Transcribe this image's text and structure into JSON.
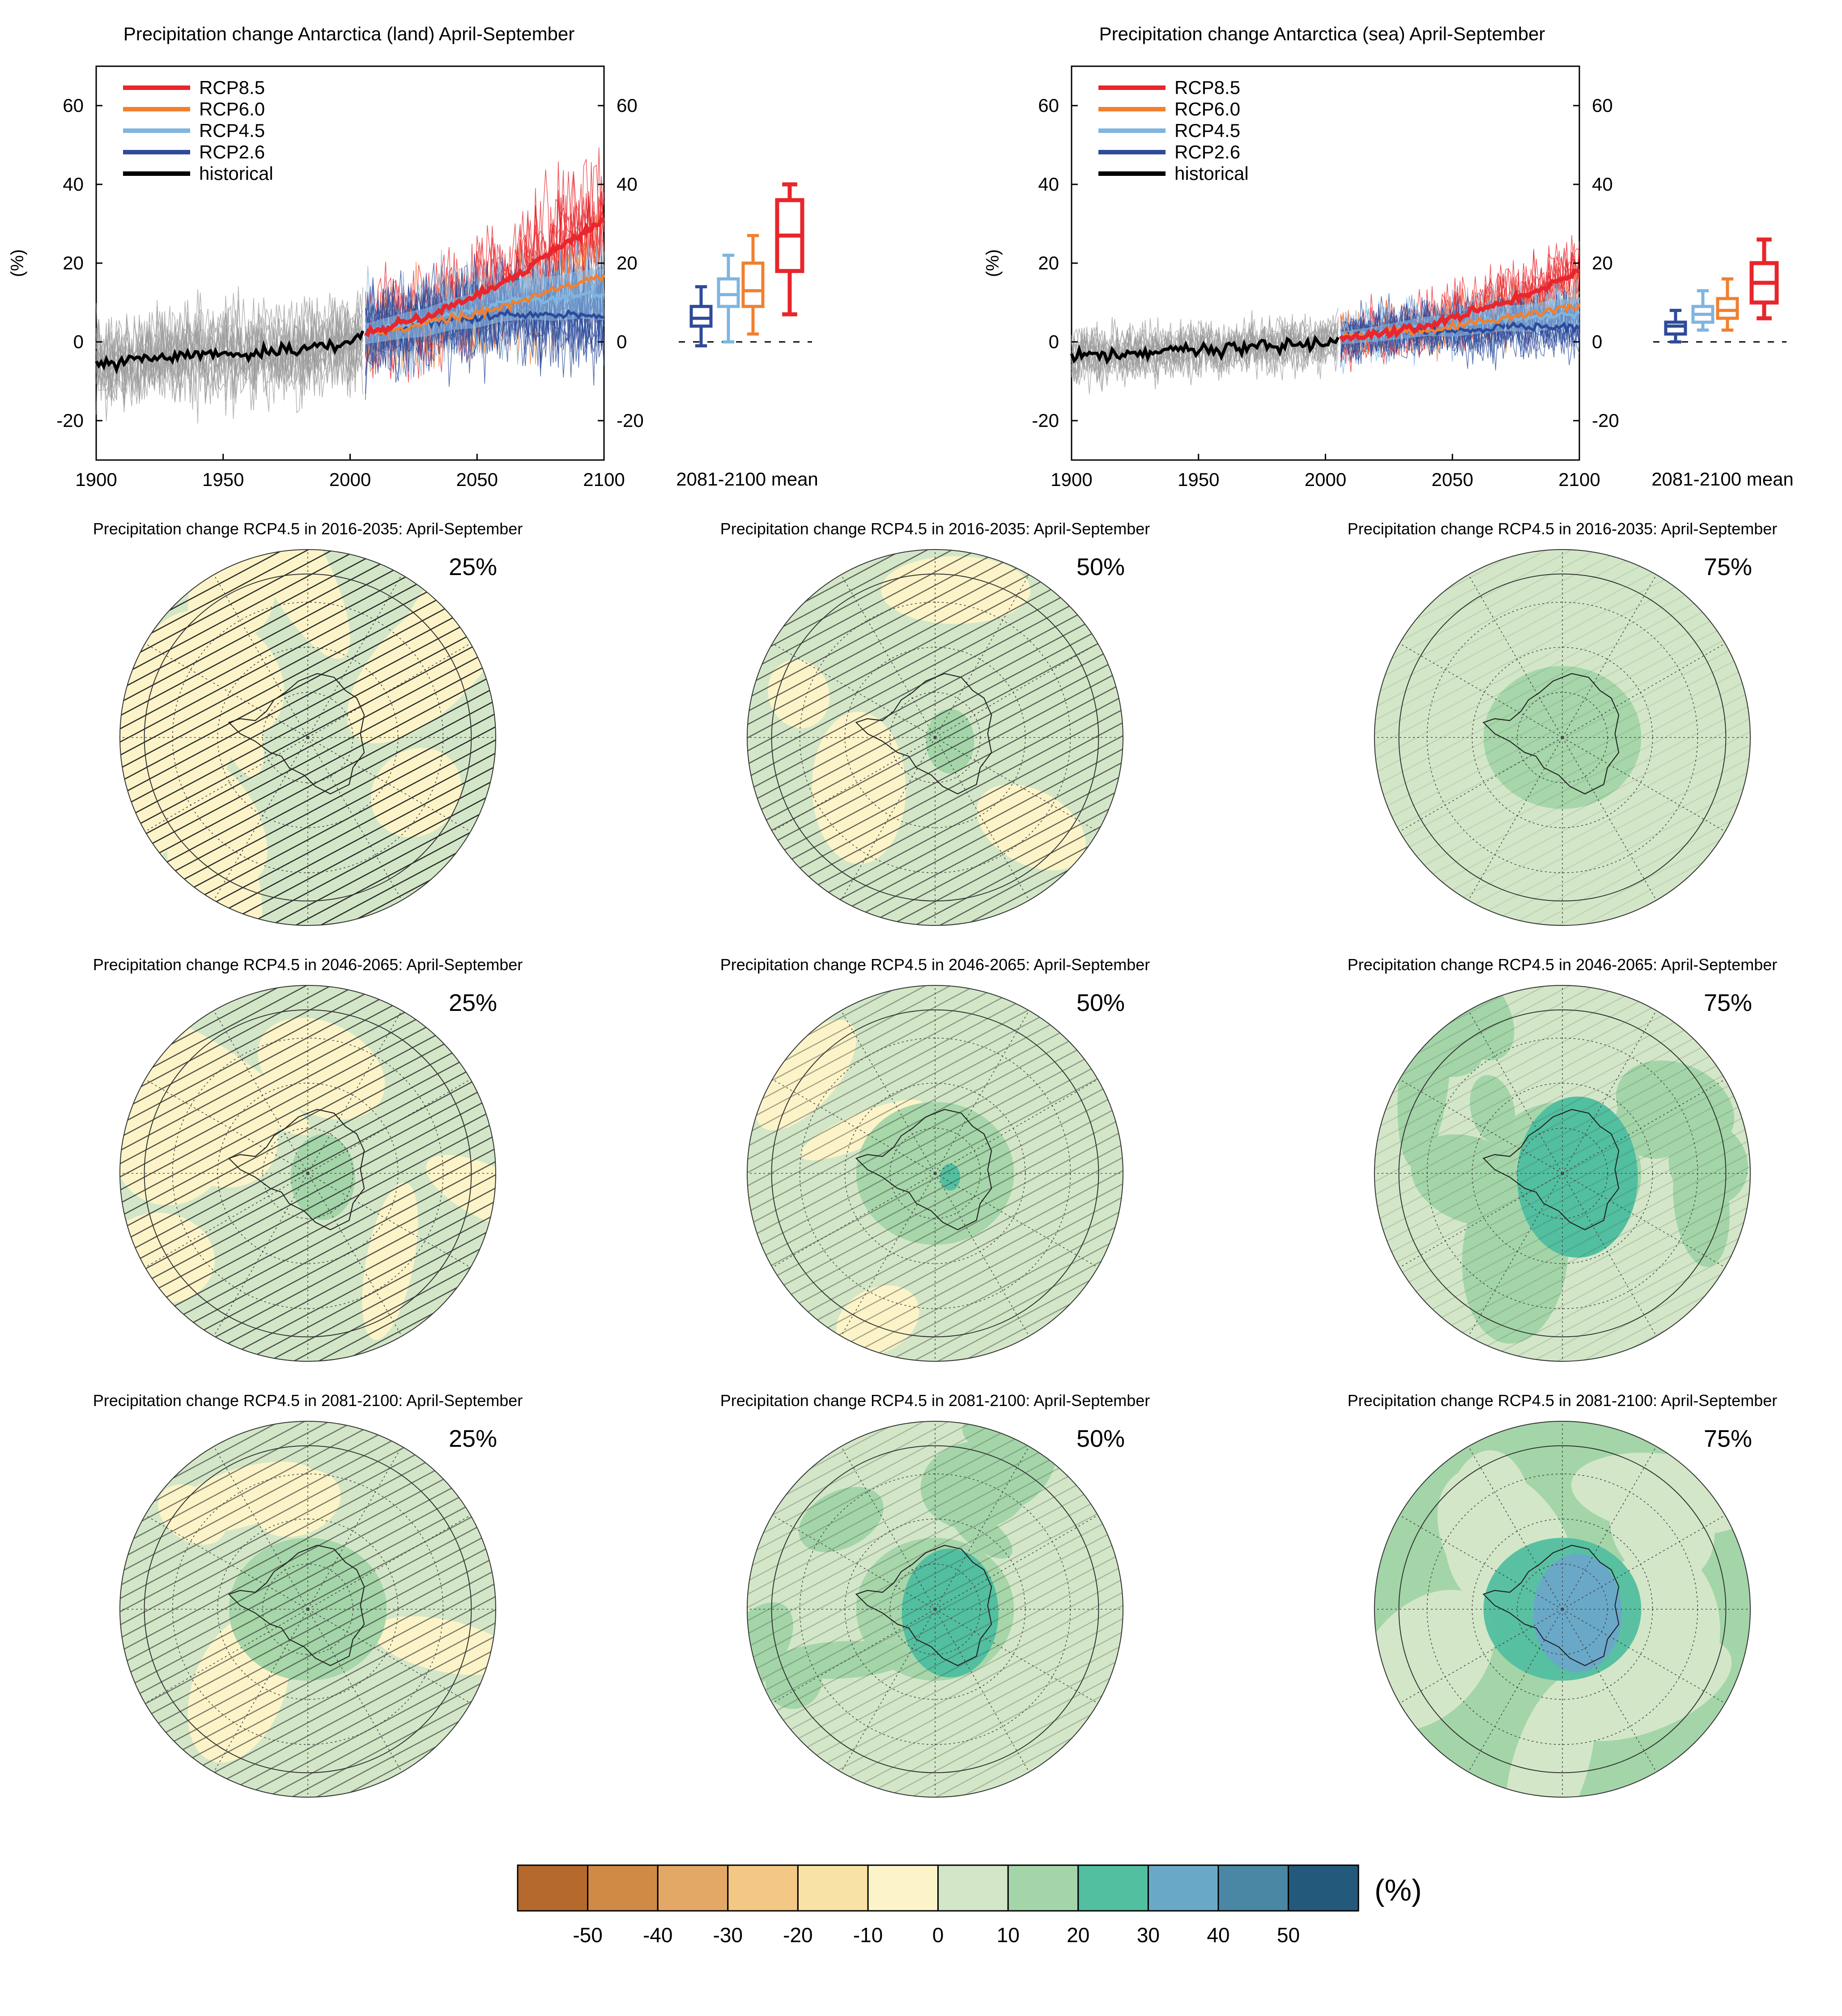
{
  "timeseries": [
    {
      "title": "Precipitation change Antarctica (land) April-September",
      "ylabel": "(%)",
      "box_xlabel": "2081-2100 mean"
    },
    {
      "title": "Precipitation change Antarctica (sea) April-September",
      "ylabel": "(%)",
      "box_xlabel": "2081-2100 mean"
    }
  ],
  "maps": [
    {
      "title": "Precipitation change RCP4.5 in 2016-2035: April-September",
      "percentile": "25%"
    },
    {
      "title": "Precipitation change RCP4.5 in 2016-2035: April-September",
      "percentile": "50%"
    },
    {
      "title": "Precipitation change RCP4.5 in 2016-2035: April-September",
      "percentile": "75%"
    },
    {
      "title": "Precipitation change RCP4.5 in 2046-2065: April-September",
      "percentile": "25%"
    },
    {
      "title": "Precipitation change RCP4.5 in 2046-2065: April-September",
      "percentile": "50%"
    },
    {
      "title": "Precipitation change RCP4.5 in 2046-2065: April-September",
      "percentile": "75%"
    },
    {
      "title": "Precipitation change RCP4.5 in 2081-2100: April-September",
      "percentile": "25%"
    },
    {
      "title": "Precipitation change RCP4.5 in 2081-2100: April-September",
      "percentile": "50%"
    },
    {
      "title": "Precipitation change RCP4.5 in 2081-2100: April-September",
      "percentile": "75%"
    }
  ],
  "colorbar": {
    "unit": "(%)",
    "colors": [
      "#b5692c",
      "#cf8a45",
      "#e3a866",
      "#f2c884",
      "#f8e2a5",
      "#fcf4c8",
      "#d3e7c8",
      "#a3d5a8",
      "#52bfa0",
      "#6aa8c8",
      "#4a87a5",
      "#235a7c"
    ],
    "tick_labels": [
      "-50",
      "-40",
      "-30",
      "-20",
      "-10",
      "0",
      "10",
      "20",
      "30",
      "40",
      "50"
    ]
  },
  "chart_data": [
    {
      "type": "line",
      "title": "Precipitation change Antarctica (land) April-September",
      "xlabel": "",
      "ylabel": "(%)",
      "xlim": [
        1900,
        2100
      ],
      "ylim": [
        -30,
        70
      ],
      "x_ticks": [
        "1900",
        "1950",
        "2000",
        "2050",
        "2100"
      ],
      "y_ticks": [
        "-20",
        "0",
        "20",
        "40",
        "60"
      ],
      "legend_position": "top-left",
      "series": [
        {
          "name": "RCP8.5",
          "color": "#e8262b",
          "x": [
            2006,
            2020,
            2030,
            2040,
            2050,
            2060,
            2070,
            2080,
            2090,
            2100
          ],
          "values": [
            2,
            5,
            6,
            9,
            12,
            15,
            19,
            23,
            27,
            31
          ]
        },
        {
          "name": "RCP6.0",
          "color": "#f08030",
          "x": [
            2006,
            2020,
            2030,
            2040,
            2050,
            2060,
            2070,
            2080,
            2090,
            2100
          ],
          "values": [
            2,
            3,
            5,
            6,
            7,
            9,
            11,
            13,
            15,
            17
          ]
        },
        {
          "name": "RCP4.5",
          "color": "#7fb5e0",
          "x": [
            2006,
            2020,
            2030,
            2040,
            2050,
            2060,
            2070,
            2080,
            2090,
            2100
          ],
          "values": [
            2,
            4,
            5,
            7,
            8,
            10,
            11,
            11,
            12,
            12
          ]
        },
        {
          "name": "RCP2.6",
          "color": "#2e4a9a",
          "x": [
            2006,
            2020,
            2030,
            2040,
            2050,
            2060,
            2070,
            2080,
            2090,
            2100
          ],
          "values": [
            2,
            4,
            5,
            6,
            6,
            7,
            7,
            7,
            7,
            7
          ]
        },
        {
          "name": "historical",
          "color": "#000000",
          "x": [
            1900,
            1910,
            1920,
            1930,
            1940,
            1950,
            1960,
            1970,
            1980,
            1990,
            2000,
            2005
          ],
          "values": [
            -5,
            -5,
            -4,
            -4,
            -3,
            -3,
            -3,
            -2,
            -2,
            -1,
            0,
            2
          ]
        }
      ],
      "boxes": [
        {
          "name": "RCP2.6",
          "color": "#2e4a9a",
          "min": -1,
          "q1": 4,
          "median": 6,
          "q3": 9,
          "max": 14
        },
        {
          "name": "RCP4.5",
          "color": "#7fb5e0",
          "min": 0,
          "q1": 9,
          "median": 12,
          "q3": 16,
          "max": 22
        },
        {
          "name": "RCP6.0",
          "color": "#f08030",
          "min": 2,
          "q1": 9,
          "median": 13,
          "q3": 20,
          "max": 27
        },
        {
          "name": "RCP8.5",
          "color": "#e8262b",
          "min": 7,
          "q1": 18,
          "median": 27,
          "q3": 36,
          "max": 40
        }
      ]
    },
    {
      "type": "line",
      "title": "Precipitation change Antarctica (sea) April-September",
      "xlabel": "",
      "ylabel": "(%)",
      "xlim": [
        1900,
        2100
      ],
      "ylim": [
        -30,
        70
      ],
      "x_ticks": [
        "1900",
        "1950",
        "2000",
        "2050",
        "2100"
      ],
      "y_ticks": [
        "-20",
        "0",
        "20",
        "40",
        "60"
      ],
      "legend_position": "top-left",
      "series": [
        {
          "name": "RCP8.5",
          "color": "#e8262b",
          "x": [
            2006,
            2020,
            2030,
            2040,
            2050,
            2060,
            2070,
            2080,
            2090,
            2100
          ],
          "values": [
            1,
            2,
            3,
            4,
            6,
            8,
            10,
            12,
            15,
            18
          ]
        },
        {
          "name": "RCP6.0",
          "color": "#f08030",
          "x": [
            2006,
            2020,
            2030,
            2040,
            2050,
            2060,
            2070,
            2080,
            2090,
            2100
          ],
          "values": [
            1,
            2,
            3,
            3,
            4,
            5,
            6,
            7,
            8,
            9
          ]
        },
        {
          "name": "RCP4.5",
          "color": "#7fb5e0",
          "x": [
            2006,
            2020,
            2030,
            2040,
            2050,
            2060,
            2070,
            2080,
            2090,
            2100
          ],
          "values": [
            1,
            2,
            3,
            4,
            4,
            5,
            6,
            6,
            7,
            7
          ]
        },
        {
          "name": "RCP2.6",
          "color": "#2e4a9a",
          "x": [
            2006,
            2020,
            2030,
            2040,
            2050,
            2060,
            2070,
            2080,
            2090,
            2100
          ],
          "values": [
            1,
            2,
            3,
            3,
            3,
            3,
            4,
            4,
            4,
            4
          ]
        },
        {
          "name": "historical",
          "color": "#000000",
          "x": [
            1900,
            1910,
            1920,
            1930,
            1940,
            1950,
            1960,
            1970,
            1980,
            1990,
            2000,
            2005
          ],
          "values": [
            -4,
            -3,
            -3,
            -3,
            -2,
            -2,
            -2,
            -1,
            -1,
            -1,
            0,
            1
          ]
        }
      ],
      "boxes": [
        {
          "name": "RCP2.6",
          "color": "#2e4a9a",
          "min": 0,
          "q1": 2,
          "median": 4,
          "q3": 5,
          "max": 8
        },
        {
          "name": "RCP4.5",
          "color": "#7fb5e0",
          "min": 3,
          "q1": 5,
          "median": 7,
          "q3": 9,
          "max": 13
        },
        {
          "name": "RCP6.0",
          "color": "#f08030",
          "min": 3,
          "q1": 6,
          "median": 8,
          "q3": 11,
          "max": 16
        },
        {
          "name": "RCP8.5",
          "color": "#e8262b",
          "min": 6,
          "q1": 10,
          "median": 15,
          "q3": 20,
          "max": 26
        }
      ]
    }
  ]
}
